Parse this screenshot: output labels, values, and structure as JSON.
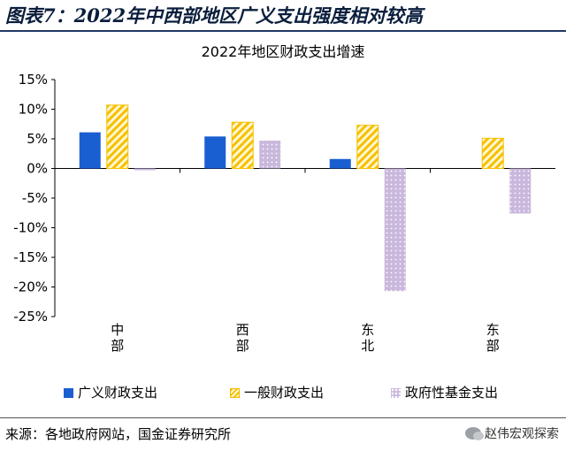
{
  "figure_title": "图表7：2022年中西部地区广义支出强度相对较高",
  "source": "来源：各地政府网站，国金证券研究所",
  "brand": "赵伟宏观探索",
  "colors": {
    "broad": "#1a5fd1",
    "general": "#f6c000",
    "fund": "#c9b8dc"
  },
  "chart_data": {
    "type": "bar",
    "title": "2022年地区财政支出增速",
    "categories": [
      "中\n部",
      "西\n部",
      "东\n北",
      "东\n部"
    ],
    "series": [
      {
        "name": "广义财政支出",
        "values": [
          6.1,
          5.4,
          1.6,
          null
        ]
      },
      {
        "name": "一般财政支出",
        "values": [
          10.7,
          7.8,
          7.3,
          5.1
        ]
      },
      {
        "name": "政府性基金支出",
        "values": [
          -0.3,
          4.7,
          -20.7,
          -7.6
        ]
      }
    ],
    "y_ticks": [
      "15%",
      "10%",
      "5%",
      "0%",
      "-5%",
      "-10%",
      "-15%",
      "-20%",
      "-25%"
    ],
    "ylim": [
      -25,
      15
    ],
    "legend_position": "bottom",
    "grid": false
  }
}
